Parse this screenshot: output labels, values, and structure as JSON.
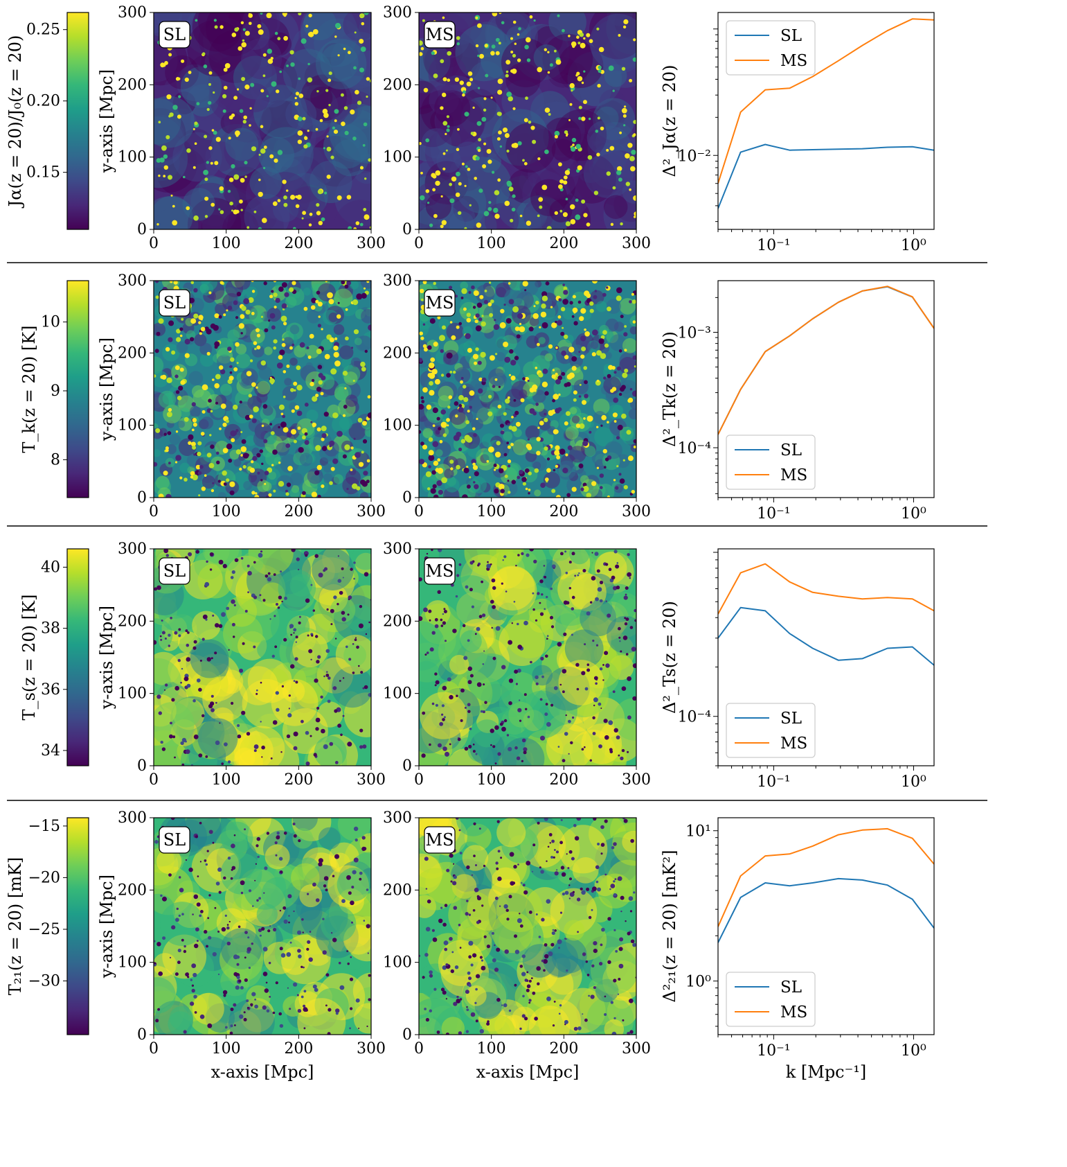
{
  "figure": {
    "xlabel_map": "x-axis [Mpc]",
    "ylabel_map": "y-axis [Mpc]",
    "map_ticks": [
      "0",
      "100",
      "200",
      "300"
    ],
    "map_tags": [
      "SL",
      "MS"
    ],
    "k_ticks": [
      "10⁻¹",
      "10⁰"
    ],
    "xlabel_ps": "k [Mpc⁻¹]",
    "viridis": [
      "#440154",
      "#482878",
      "#3e4a89",
      "#31688e",
      "#26828e",
      "#1f9e89",
      "#35b779",
      "#6ece58",
      "#b5de2b",
      "#fde725"
    ],
    "series_colors": {
      "SL": "#1f77b4",
      "MS": "#ff7f0e"
    }
  },
  "rows": [
    {
      "colorbar": {
        "label": "Jα(z = 20)/J₀(z = 20)",
        "ticks": [
          "0.25",
          "0.20",
          "0.15"
        ],
        "tick_values": [
          0.25,
          0.2,
          0.15
        ],
        "range": [
          0.11,
          0.262
        ]
      },
      "maps": {
        "style": "sparse",
        "seed": 11
      },
      "chart_data": {
        "type": "line",
        "ylabel": "Δ²_Jα(z = 20)",
        "xlabel": "k [Mpc⁻¹]",
        "xlim": [
          0.04,
          1.4
        ],
        "ylim": [
          0.0026,
          0.135
        ],
        "yticks": [
          {
            "value": 0.01,
            "label": "10⁻²"
          }
        ],
        "legend": "upper-left",
        "x": [
          0.04,
          0.058,
          0.087,
          0.13,
          0.19,
          0.29,
          0.43,
          0.65,
          0.98,
          1.4
        ],
        "series": [
          {
            "name": "SL",
            "values": [
              0.0038,
              0.0106,
              0.0122,
              0.011,
              0.0111,
              0.0112,
              0.0113,
              0.0116,
              0.0117,
              0.011
            ]
          },
          {
            "name": "MS",
            "values": [
              0.006,
              0.022,
              0.033,
              0.034,
              0.042,
              0.056,
              0.074,
              0.097,
              0.12,
              0.118
            ]
          }
        ]
      }
    },
    {
      "colorbar": {
        "label": "T_k(z = 20) [K]",
        "ticks": [
          "10",
          "9",
          "8"
        ],
        "tick_values": [
          10,
          9,
          8
        ],
        "range": [
          7.45,
          10.6
        ]
      },
      "maps": {
        "style": "fine",
        "seed": 23
      },
      "chart_data": {
        "type": "line",
        "ylabel": "Δ²_Tk(z = 20)",
        "xlabel": "k [Mpc⁻¹]",
        "xlim": [
          0.04,
          1.4
        ],
        "ylim": [
          3.7e-05,
          0.0028
        ],
        "yticks": [
          {
            "value": 0.001,
            "label": "10⁻³"
          },
          {
            "value": 0.0001,
            "label": "10⁻⁴"
          }
        ],
        "legend": "lower-left",
        "x": [
          0.04,
          0.058,
          0.087,
          0.13,
          0.19,
          0.29,
          0.43,
          0.65,
          0.98,
          1.4
        ],
        "series": [
          {
            "name": "SL",
            "values": [
              0.00013,
              0.00032,
              0.00068,
              0.00093,
              0.00131,
              0.00182,
              0.00228,
              0.00248,
              0.00202,
              0.00108
            ]
          },
          {
            "name": "MS",
            "values": [
              0.00013,
              0.00032,
              0.00068,
              0.00093,
              0.00131,
              0.00182,
              0.00228,
              0.0025,
              0.00203,
              0.00108
            ]
          }
        ]
      }
    },
    {
      "colorbar": {
        "label": "T_s(z = 20) [K]",
        "ticks": [
          "40",
          "38",
          "36",
          "34"
        ],
        "tick_values": [
          40,
          38,
          36,
          34
        ],
        "range": [
          33.5,
          40.6
        ]
      },
      "maps": {
        "style": "smooth",
        "seed": 37
      },
      "chart_data": {
        "type": "line",
        "ylabel": "Δ²_Ts(z = 20)",
        "xlabel": "k [Mpc⁻¹]",
        "xlim": [
          0.04,
          1.4
        ],
        "ylim": [
          5e-05,
          0.00105
        ],
        "yticks": [
          {
            "value": 0.0001,
            "label": "10⁻⁴"
          }
        ],
        "legend": "lower-left",
        "x": [
          0.04,
          0.058,
          0.087,
          0.13,
          0.19,
          0.29,
          0.43,
          0.65,
          0.98,
          1.4
        ],
        "series": [
          {
            "name": "SL",
            "values": [
              0.0003,
              0.00046,
              0.00044,
              0.00032,
              0.00026,
              0.00022,
              0.000225,
              0.00026,
              0.000265,
              0.000205
            ]
          },
          {
            "name": "MS",
            "values": [
              0.00042,
              0.00075,
              0.00085,
              0.00066,
              0.00057,
              0.00054,
              0.00052,
              0.00053,
              0.00052,
              0.00044
            ]
          }
        ]
      }
    },
    {
      "colorbar": {
        "label": "T₂₁(z = 20) [mK]",
        "ticks": [
          "−15",
          "−20",
          "−25",
          "−30"
        ],
        "tick_values": [
          -15,
          -20,
          -25,
          -30
        ],
        "range": [
          -35.2,
          -14.2
        ]
      },
      "maps": {
        "style": "smooth",
        "seed": 51
      },
      "chart_data": {
        "type": "line",
        "ylabel": "Δ²₂₁(z = 20) [mK²]",
        "xlabel": "k [Mpc⁻¹]",
        "xlim": [
          0.04,
          1.4
        ],
        "ylim": [
          0.44,
          12.2
        ],
        "yticks": [
          {
            "value": 10,
            "label": "10¹"
          },
          {
            "value": 1,
            "label": "10⁰"
          }
        ],
        "legend": "lower-left",
        "x": [
          0.04,
          0.058,
          0.087,
          0.13,
          0.19,
          0.29,
          0.43,
          0.65,
          0.98,
          1.4
        ],
        "series": [
          {
            "name": "SL",
            "values": [
              1.8,
              3.6,
              4.5,
              4.3,
              4.5,
              4.8,
              4.7,
              4.35,
              3.5,
              2.25
            ]
          },
          {
            "name": "MS",
            "values": [
              2.3,
              5.0,
              6.8,
              7.0,
              7.9,
              9.4,
              10.1,
              10.3,
              8.9,
              6.0
            ]
          }
        ]
      }
    }
  ]
}
